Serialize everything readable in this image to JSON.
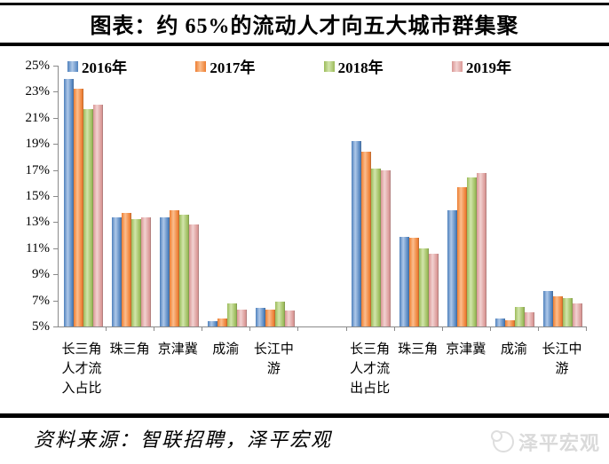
{
  "page": {
    "title": "图表：约 65%的流动人才向五大城市群集聚",
    "source_note": "资料来源：智联招聘，泽平宏观",
    "watermark_text": "泽平宏观"
  },
  "legend": [
    {
      "label": "2016年",
      "color": "#4F81BD",
      "light": "#AEC8E8"
    },
    {
      "label": "2017年",
      "color": "#ED7D31",
      "light": "#FBBE8E"
    },
    {
      "label": "2018年",
      "color": "#9BBB59",
      "light": "#D2E5AC"
    },
    {
      "label": "2019年",
      "color": "#D99694",
      "light": "#F2D2D1"
    }
  ],
  "chart_data": {
    "type": "bar",
    "title": "约65%的流动人才向五大城市群集聚",
    "xlabel": "",
    "ylabel": "",
    "ylim": [
      5,
      25
    ],
    "ytick_step": 2,
    "ytick_labels": [
      "25%",
      "23%",
      "21%",
      "19%",
      "17%",
      "15%",
      "13%",
      "11%",
      "9%",
      "7%",
      "5%"
    ],
    "grid": false,
    "legend_position": "top",
    "axis_color": "#8a8a8a",
    "series": [
      {
        "name": "2016年",
        "color": "#4F81BD"
      },
      {
        "name": "2017年",
        "color": "#ED7D31"
      },
      {
        "name": "2018年",
        "color": "#9BBB59"
      },
      {
        "name": "2019年",
        "color": "#D99694"
      }
    ],
    "groups": [
      {
        "label": "长三角人才流入占比",
        "label_lines": [
          "长三角",
          "人才流",
          "入占比"
        ],
        "values": [
          24.0,
          23.2,
          21.7,
          22.0
        ]
      },
      {
        "label": "珠三角",
        "label_lines": [
          "珠三角"
        ],
        "values": [
          13.4,
          13.7,
          13.2,
          13.4
        ]
      },
      {
        "label": "京津冀",
        "label_lines": [
          "京津冀"
        ],
        "values": [
          13.4,
          13.9,
          13.6,
          12.8
        ]
      },
      {
        "label": "成渝",
        "label_lines": [
          "成渝"
        ],
        "values": [
          5.4,
          5.6,
          6.8,
          6.3
        ]
      },
      {
        "label": "长江中游",
        "label_lines": [
          "长江中",
          "游"
        ],
        "values": [
          6.4,
          6.3,
          6.9,
          6.2
        ]
      },
      {
        "label": "",
        "label_lines": [],
        "values": []
      },
      {
        "label": "长三角人才流出占比",
        "label_lines": [
          "长三角",
          "人才流",
          "出占比"
        ],
        "values": [
          19.2,
          18.4,
          17.1,
          17.0
        ]
      },
      {
        "label": "珠三角",
        "label_lines": [
          "珠三角"
        ],
        "values": [
          11.9,
          11.8,
          11.0,
          10.6
        ]
      },
      {
        "label": "京津冀",
        "label_lines": [
          "京津冀"
        ],
        "values": [
          13.9,
          15.7,
          16.4,
          16.8
        ]
      },
      {
        "label": "成渝",
        "label_lines": [
          "成渝"
        ],
        "values": [
          5.6,
          5.5,
          6.5,
          6.1
        ]
      },
      {
        "label": "长江中游",
        "label_lines": [
          "长江中",
          "游"
        ],
        "values": [
          7.7,
          7.3,
          7.2,
          6.8
        ]
      }
    ]
  }
}
